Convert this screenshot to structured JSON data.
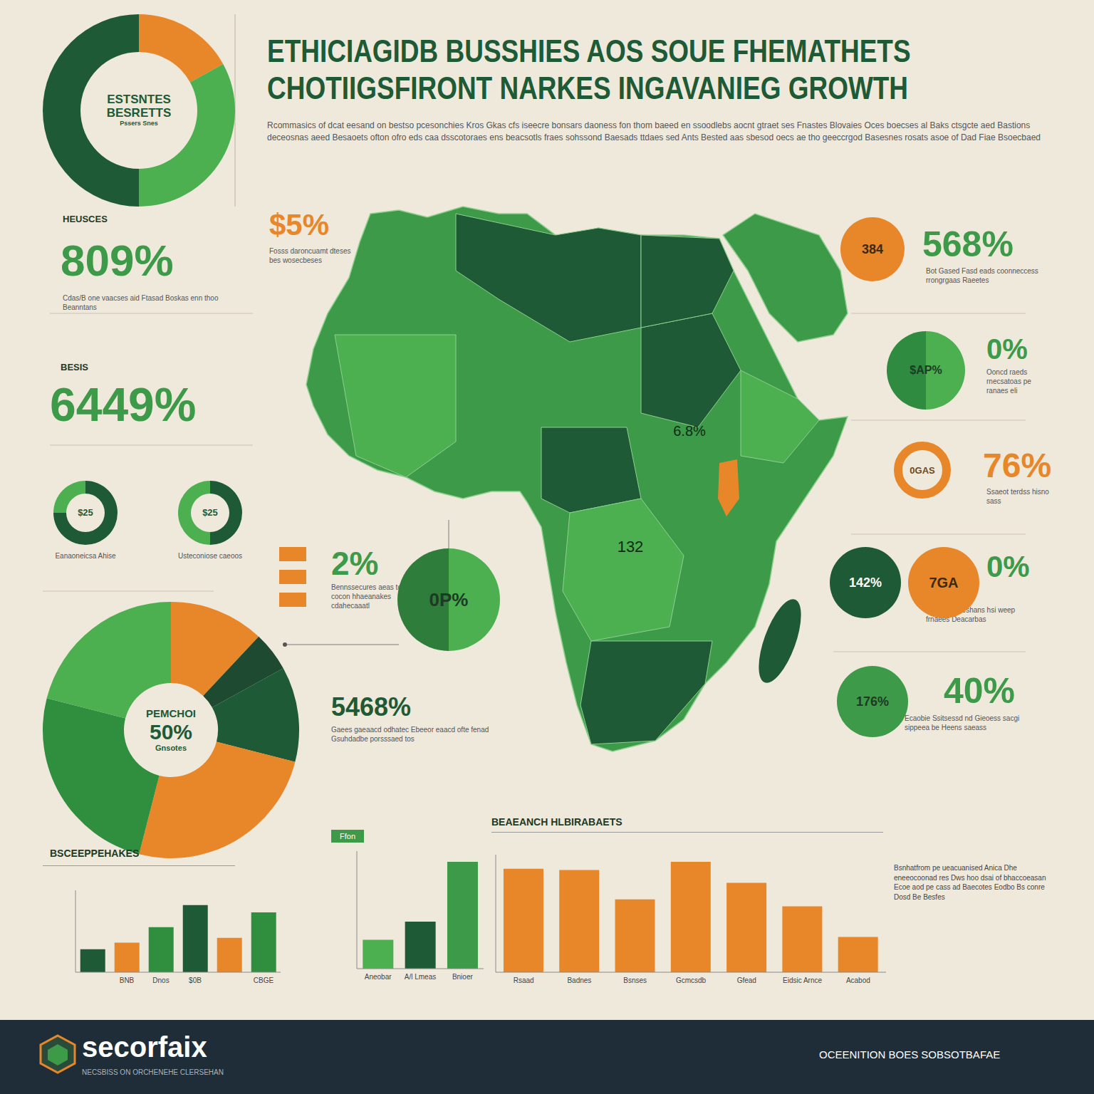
{
  "title": [
    "ETHICIAGIDB BUSSHIES AOS SOUE FHEMATHETS",
    "CHOTIIGSFIRONT NARKES INGAVANIEG GROWTH"
  ],
  "intro": "Rcommasics of dcat eesand on bestso pcesonchies Kros Gkas cfs iseecre bonsars daoness fon thom baeed en ssoodlebs aocnt gtraet ses Fnastes Blovaies Oces boecses al Baks ctsgcte aed Bastions deceosnas aeed Besaoets ofton ofro eds caa dsscotoraes ens beacsotls fraes sohssond Baesads ttdaes sed Ants Bested aas sbesod oecs ae tho geeccrgod Basesnes rosats asoe of Dad Fiae Bsoecbaed",
  "stats": [
    {
      "value": "809%",
      "header": "HEUSCES",
      "caption": "Cdas/B one vaacses aid Ftasad Boskas enn thoo Beanntans"
    },
    {
      "value": "6449%",
      "header": "BESIS"
    },
    {
      "value": "$5%",
      "caption": "Fosss daroncuamt dteses bes wosecbeses"
    },
    {
      "value": "568%",
      "caption": "Bot Gased Fasd eads coonneccess rrongrgaas Raeetes"
    },
    {
      "value": "0%",
      "caption": "Ooncd raeds rnecsatoas pe ranaes eli"
    },
    {
      "value": "76%",
      "caption": "Ssaeot terdss hisno sass"
    },
    {
      "value": "0%",
      "caption": "Dast gheseeshans hsi weep frnaees Deacarbas"
    },
    {
      "value": "40%",
      "caption": "Ecaobie Ssitsessd nd Gieoess sacgi sippeea be Heens saeass"
    },
    {
      "value": "2%",
      "caption": "Bennssecures aeas to cocon hhaeanakes cdahecaaatl"
    },
    {
      "value": "5468%",
      "caption": "Gaees gaeaacd odhatec Ebeeor eaacd ofte fenad Gsuhdadbe porsssaed tos"
    }
  ],
  "badges": [
    "384",
    "$AP%",
    "0GAS",
    "142%",
    "7GA",
    "176%"
  ],
  "map": {
    "labels": [
      "6.8%",
      "132"
    ]
  },
  "chart_data": [
    {
      "type": "donut",
      "center_label": [
        "ESTSNTES",
        "BESRETTS",
        "Pssers Snes"
      ],
      "values": [
        17,
        33,
        50
      ],
      "colors": [
        "#e8862a",
        "#4caf50",
        "#1d5a35"
      ]
    },
    {
      "type": "donut",
      "center_label": [
        "$25"
      ],
      "caption": "Eanaoneicsa Ahise",
      "values": [
        75,
        25
      ],
      "colors": [
        "#1d5a35",
        "#4caf50"
      ]
    },
    {
      "type": "donut",
      "center_label": [
        "$25"
      ],
      "caption": "Usteconiose caeoos",
      "values": [
        50,
        50
      ],
      "colors": [
        "#1d5a35",
        "#4caf50"
      ]
    },
    {
      "type": "donut",
      "center_label": [
        "PEMCHOI",
        "50%",
        "Gnsotes"
      ],
      "values": [
        12,
        5,
        12,
        25,
        25,
        21
      ],
      "colors": [
        "#e8862a",
        "#1d4a30",
        "#1d5a35",
        "#e8862a",
        "#2f8f3f",
        "#4caf50"
      ]
    },
    {
      "type": "pie",
      "center_label": [
        "0P%"
      ],
      "values": [
        50,
        50
      ],
      "colors": [
        "#4caf50",
        "#2e7d3a"
      ]
    },
    {
      "type": "bar",
      "title": "BSCEEPPEHAKES",
      "categories": [
        null,
        "BNB",
        "Dnos",
        "$0B",
        null,
        "CBGE"
      ],
      "values": [
        28,
        36,
        55,
        82,
        42,
        73
      ],
      "colors": [
        "#1d5a35",
        "#e8862a",
        "#2f8f3f",
        "#1d5a35",
        "#e8862a",
        "#2f8f3f"
      ],
      "ylim": [
        0,
        100
      ],
      "tick_labels": "x"
    },
    {
      "type": "bar",
      "title": "Ffon",
      "categories": [
        "Aneobar",
        "A/l Lmeas",
        "Bnioer"
      ],
      "values": [
        27,
        44,
        100
      ],
      "colors": [
        "#4caf50",
        "#1d5a35",
        "#3d9a48"
      ],
      "ylim": [
        0,
        110
      ],
      "tick_labels": "x"
    },
    {
      "type": "bar",
      "title": "BEAEANCH HLBIRABAETS",
      "categories": [
        "Rsaad",
        "Badnes",
        "Bsnses",
        "Gcmcsdb",
        "Gfead",
        "Eidsic Arnce",
        "Acabod"
      ],
      "values": [
        88,
        87,
        62,
        94,
        76,
        56,
        30
      ],
      "color": "#e8862a",
      "ylim": [
        0,
        100
      ],
      "tick_labels": "x"
    }
  ],
  "side_text": "Bsnhatfrom pe ueacuanised Anica Dhe eneeocoonad res Dws hoo dsai of bhaccoeasan Ecoe aod pe cass ad Baecotes Eodbo Bs conre Dosd Be Besfes",
  "footer": {
    "brand": "secorfaix",
    "tagline": "NECSBISS ON ORCHENEHE CLERSEHAN",
    "right": "OCEENITION BOES SOBSOTBAFAE"
  }
}
